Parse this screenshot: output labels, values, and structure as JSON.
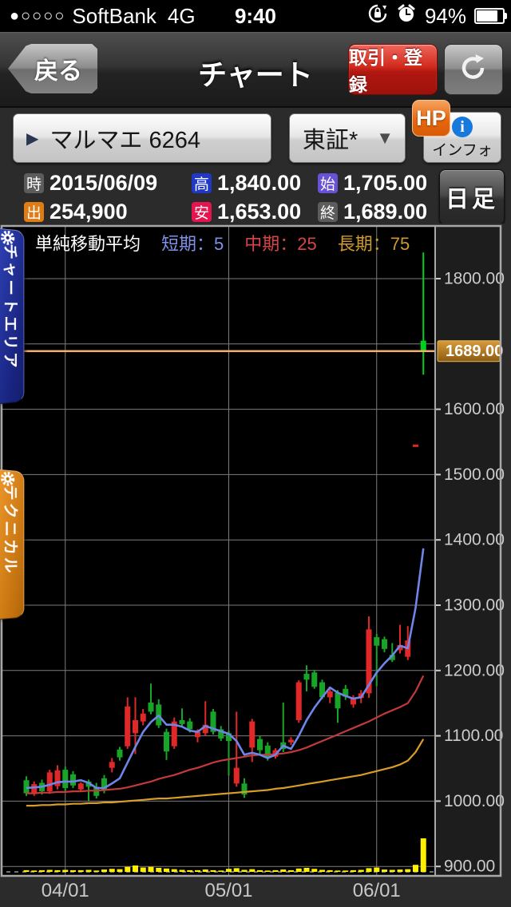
{
  "status_bar": {
    "signal_dots": "●○○○○",
    "carrier": "SoftBank",
    "network": "4G",
    "time": "9:40",
    "battery_percent": "94%"
  },
  "nav": {
    "back_label": "戻る",
    "title": "チャート",
    "trade_register_label": "取引・登録"
  },
  "selector": {
    "stock_label": "マルマエ 6264",
    "stock_arrow": "▶",
    "market_label": "東証*",
    "market_arrow": "▼",
    "hp_badge": "HP",
    "info_icon_letter": "i",
    "info_label": "インフォ"
  },
  "quote": {
    "rows": [
      [
        {
          "badge": "時",
          "color": "#5c5c5c",
          "value": "2015/06/09"
        },
        {
          "badge": "高",
          "color": "#2038c8",
          "value": "1,840.00"
        },
        {
          "badge": "始",
          "color": "#6a52d8",
          "value": "1,705.00"
        }
      ],
      [
        {
          "badge": "出",
          "color": "#e07c14",
          "value": "254,900"
        },
        {
          "badge": "安",
          "color": "#e6134e",
          "value": "1,653.00"
        },
        {
          "badge": "終",
          "color": "#5c5c5c",
          "value": "1,689.00"
        }
      ]
    ],
    "period_button": "日足"
  },
  "side_tabs": {
    "chart_area": "チャートエリア",
    "technical": "テクニカル"
  },
  "chart_data": {
    "type": "candlestick",
    "legend": {
      "title": "単純移動平均",
      "short_label": "短期：5",
      "mid_label": "中期：25",
      "long_label": "長期：75",
      "title_color": "#ffffff",
      "short_color": "#8091e8",
      "mid_color": "#d84545",
      "long_color": "#cf9a2e"
    },
    "current_price": "1689.00",
    "current_price_value": 1689,
    "y_axis": {
      "labeled_ticks": [
        1800,
        1600,
        1500,
        1400,
        1300,
        1200,
        1100,
        1000,
        900
      ],
      "gridlines": [
        1800,
        1700,
        1600,
        1500,
        1400,
        1300,
        1200,
        1100,
        1000,
        900
      ],
      "label_format_suffix": ".00"
    },
    "x_gridlines": [
      {
        "label": "04/01",
        "index": 5
      },
      {
        "label": "05/01",
        "index": 26
      },
      {
        "label": "06/01",
        "index": 45
      }
    ],
    "ohlc": [
      [
        1032,
        1038,
        1008,
        1012
      ],
      [
        1012,
        1030,
        1008,
        1026
      ],
      [
        1028,
        1033,
        1010,
        1015
      ],
      [
        1015,
        1048,
        1011,
        1044
      ],
      [
        1023,
        1055,
        1018,
        1047
      ],
      [
        1048,
        1053,
        1015,
        1020
      ],
      [
        1041,
        1046,
        1020,
        1024
      ],
      [
        1018,
        1029,
        1014,
        1027
      ],
      [
        1030,
        1033,
        1000,
        1022
      ],
      [
        1022,
        1028,
        1004,
        1008
      ],
      [
        1035,
        1040,
        1012,
        1017
      ],
      [
        1051,
        1066,
        1044,
        1060
      ],
      [
        1079,
        1083,
        1062,
        1067
      ],
      [
        1084,
        1159,
        1080,
        1145
      ],
      [
        1104,
        1159,
        1072,
        1124
      ],
      [
        1122,
        1141,
        1116,
        1134
      ],
      [
        1151,
        1180,
        1133,
        1137
      ],
      [
        1148,
        1156,
        1112,
        1116
      ],
      [
        1106,
        1111,
        1063,
        1076
      ],
      [
        1084,
        1128,
        1080,
        1122
      ],
      [
        1124,
        1142,
        1114,
        1118
      ],
      [
        1122,
        1127,
        1105,
        1110
      ],
      [
        1098,
        1110,
        1090,
        1106
      ],
      [
        1104,
        1153,
        1100,
        1117
      ],
      [
        1137,
        1141,
        1102,
        1106
      ],
      [
        1110,
        1115,
        1092,
        1096
      ],
      [
        1104,
        1108,
        1039,
        1092
      ],
      [
        1027,
        1137,
        1022,
        1051
      ],
      [
        1027,
        1035,
        1005,
        1010
      ],
      [
        1082,
        1126,
        1060,
        1122
      ],
      [
        1095,
        1100,
        1070,
        1078
      ],
      [
        1085,
        1090,
        1062,
        1068
      ],
      [
        1068,
        1081,
        1065,
        1078
      ],
      [
        1090,
        1151,
        1075,
        1080
      ],
      [
        1090,
        1098,
        1086,
        1094
      ],
      [
        1124,
        1185,
        1120,
        1182
      ],
      [
        1195,
        1208,
        1168,
        1186
      ],
      [
        1197,
        1201,
        1172,
        1175
      ],
      [
        1182,
        1186,
        1156,
        1159
      ],
      [
        1159,
        1172,
        1150,
        1168
      ],
      [
        1166,
        1170,
        1120,
        1142
      ],
      [
        1172,
        1178,
        1155,
        1160
      ],
      [
        1148,
        1162,
        1143,
        1158
      ],
      [
        1158,
        1170,
        1150,
        1165
      ],
      [
        1165,
        1283,
        1158,
        1263
      ],
      [
        1251,
        1256,
        1176,
        1238
      ],
      [
        1248,
        1252,
        1228,
        1233
      ],
      [
        1224,
        1242,
        1213,
        1216
      ],
      [
        1231,
        1270,
        1226,
        1239
      ],
      [
        1221,
        1268,
        1216,
        1246
      ],
      [
        1546,
        1546,
        1546,
        1546
      ],
      [
        1705,
        1840,
        1653,
        1689
      ]
    ],
    "volumes_rel": [
      0.05,
      0.04,
      0.05,
      0.06,
      0.05,
      0.06,
      0.05,
      0.05,
      0.06,
      0.04,
      0.07,
      0.09,
      0.08,
      0.15,
      0.19,
      0.13,
      0.15,
      0.12,
      0.1,
      0.08,
      0.06,
      0.05,
      0.05,
      0.07,
      0.05,
      0.04,
      0.09,
      0.11,
      0.06,
      0.08,
      0.05,
      0.04,
      0.05,
      0.07,
      0.05,
      0.1,
      0.12,
      0.09,
      0.06,
      0.05,
      0.04,
      0.04,
      0.05,
      0.06,
      0.11,
      0.13,
      0.07,
      0.06,
      0.07,
      0.08,
      0.21,
      1.0
    ],
    "volume_latest_shares": "254,900",
    "ma5": [
      1020,
      1021,
      1022,
      1025,
      1029,
      1030,
      1030,
      1032,
      1028,
      1020,
      1020,
      1027,
      1035,
      1059,
      1083,
      1106,
      1121,
      1131,
      1117,
      1117,
      1114,
      1108,
      1106,
      1115,
      1111,
      1107,
      1103,
      1092,
      1071,
      1074,
      1071,
      1066,
      1071,
      1085,
      1080,
      1100,
      1124,
      1143,
      1159,
      1174,
      1166,
      1161,
      1157,
      1159,
      1178,
      1197,
      1211,
      1223,
      1238,
      1234,
      1296,
      1387
    ],
    "ma25": [
      1012,
      1012,
      1013,
      1013,
      1014,
      1014,
      1015,
      1015,
      1016,
      1016,
      1017,
      1018,
      1019,
      1021,
      1024,
      1027,
      1030,
      1034,
      1037,
      1040,
      1044,
      1048,
      1051,
      1055,
      1059,
      1062,
      1064,
      1066,
      1068,
      1070,
      1071,
      1071,
      1072,
      1073,
      1075,
      1078,
      1082,
      1087,
      1092,
      1097,
      1102,
      1107,
      1112,
      1117,
      1122,
      1128,
      1134,
      1139,
      1144,
      1150,
      1168,
      1192
    ],
    "ma75": [
      993,
      993,
      994,
      994,
      995,
      995,
      996,
      996,
      997,
      997,
      998,
      998,
      999,
      1000,
      1001,
      1002,
      1003,
      1004,
      1004,
      1005,
      1006,
      1007,
      1008,
      1009,
      1010,
      1011,
      1012,
      1013,
      1014,
      1015,
      1016,
      1017,
      1019,
      1020,
      1022,
      1024,
      1026,
      1028,
      1030,
      1032,
      1034,
      1036,
      1038,
      1040,
      1043,
      1046,
      1049,
      1052,
      1056,
      1062,
      1075,
      1095
    ],
    "colors": {
      "up_candle": "#e02828",
      "down_candle": "#17a428",
      "latest_candle": "#00d01e",
      "volume": "#ffef00",
      "ma5": "#6f86e8",
      "ma25": "#c23a3a",
      "ma75": "#d89c28",
      "grid": "#7d7d7d",
      "frame": "#a8a8a8",
      "price_line": "#f2b066",
      "price_box_top": "#d89a3a",
      "price_box_bottom": "#8a5c10",
      "axis_text": "#cccccc",
      "plot_bg": "#000000",
      "label_strip_bg": "#1d1d1d"
    }
  }
}
